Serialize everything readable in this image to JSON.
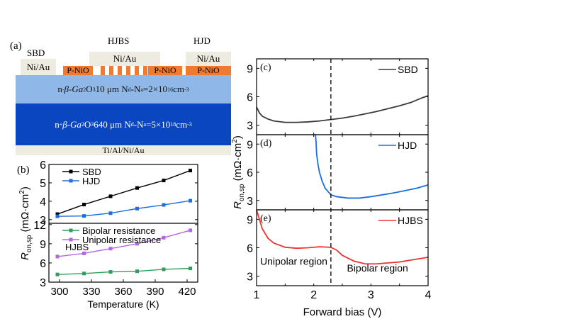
{
  "diagram": {
    "panel_label": "(a)",
    "devices": [
      {
        "name": "SBD",
        "metal": "Ni/Au"
      },
      {
        "name": "HJBS",
        "metal": "Ni/Au",
        "pnio": [
          "P-NiO",
          "P-NiO"
        ]
      },
      {
        "name": "HJD",
        "metal": "Ni/Au",
        "pnio": [
          "P-NiO"
        ]
      }
    ],
    "drift_layer": {
      "prefix": "n",
      "sup": "-",
      "text": " β-Ga",
      "sub1": "2",
      "o": "O",
      "sub2": "3",
      "rest": " 10 μm N",
      "nd": "d",
      "dash": "-N",
      "na": "a",
      "eq": "=2×10",
      "exp": "16",
      "unit": " cm",
      "unitexp": "-3"
    },
    "substrate": {
      "prefix": "n",
      "sup": "+",
      "text": " β-Ga",
      "sub1": "2",
      "o": "O",
      "sub2": "3",
      "rest": " 640 μm N",
      "nd": "d",
      "dash": "-N",
      "na": "a",
      "eq": "=5×10",
      "exp": "18",
      "unit": " cm",
      "unitexp": "-3"
    },
    "back_contact": "Ti/Al/Ni/Au",
    "colors": {
      "metal": "#eeebe1",
      "pnio": "#ee7b30",
      "drift": "#8fb8e8",
      "substrate": "#0a46bf"
    }
  },
  "chart_data": [
    {
      "id": "b",
      "type": "line",
      "panel_label": "(b)",
      "xlabel": "Temperature (K)",
      "ylabel": "R_on,sp (mΩ·cm²)",
      "x": [
        298,
        323,
        348,
        373,
        398,
        423
      ],
      "xticks": [
        300,
        330,
        360,
        390,
        420
      ],
      "xlim": [
        290,
        430
      ],
      "subplots": [
        {
          "ylim": [
            2.8,
            6.0
          ],
          "yticks": [
            3,
            4,
            5,
            6
          ],
          "legend": "top-left",
          "series": [
            {
              "name": "SBD",
              "color": "#000000",
              "values": [
                3.3,
                3.82,
                4.27,
                4.72,
                5.13,
                5.67
              ]
            },
            {
              "name": "HJD",
              "color": "#1f6fe0",
              "values": [
                3.18,
                3.2,
                3.35,
                3.6,
                3.8,
                4.03
              ]
            }
          ]
        },
        {
          "ylim": [
            3,
            12.2
          ],
          "yticks": [
            3,
            6,
            9,
            12
          ],
          "legend": "top-left",
          "annotation": "HJBS",
          "series": [
            {
              "name": "Bipolar resistance",
              "color": "#2ca05a",
              "values": [
                4.2,
                4.35,
                4.6,
                4.7,
                5.0,
                5.15
              ]
            },
            {
              "name": "Unipolar resistance",
              "color": "#b366e6",
              "values": [
                7.0,
                7.5,
                8.25,
                9.0,
                9.95,
                11.1
              ]
            }
          ]
        }
      ]
    },
    {
      "id": "cde",
      "type": "line",
      "xlabel": "Forward bias (V)",
      "ylabel": "R_on,sp (mΩ·cm²)",
      "xlim": [
        1,
        4
      ],
      "xticks": [
        1,
        2,
        3,
        4
      ],
      "dashed_line_x": 2.3,
      "subplots": [
        {
          "panel_label": "(c)",
          "ylim": [
            2,
            10
          ],
          "yticks": [
            3,
            6,
            9
          ],
          "series": [
            {
              "name": "SBD",
              "color": "#3a3a3a",
              "points": [
                [
                  1.0,
                  4.9
                ],
                [
                  1.05,
                  4.3
                ],
                [
                  1.1,
                  3.95
                ],
                [
                  1.2,
                  3.65
                ],
                [
                  1.3,
                  3.45
                ],
                [
                  1.5,
                  3.3
                ],
                [
                  1.7,
                  3.3
                ],
                [
                  1.9,
                  3.35
                ],
                [
                  2.1,
                  3.45
                ],
                [
                  2.3,
                  3.6
                ],
                [
                  2.5,
                  3.75
                ],
                [
                  2.7,
                  3.95
                ],
                [
                  2.9,
                  4.2
                ],
                [
                  3.1,
                  4.45
                ],
                [
                  3.3,
                  4.75
                ],
                [
                  3.5,
                  5.05
                ],
                [
                  3.7,
                  5.4
                ],
                [
                  3.9,
                  5.9
                ],
                [
                  4.0,
                  6.1
                ]
              ]
            }
          ]
        },
        {
          "panel_label": "(d)",
          "ylim": [
            2,
            10
          ],
          "yticks": [
            3,
            6,
            9
          ],
          "series": [
            {
              "name": "HJD",
              "color": "#1a6fe0",
              "points": [
                [
                  2.03,
                  10
                ],
                [
                  2.04,
                  9.3
                ],
                [
                  2.05,
                  8.0
                ],
                [
                  2.07,
                  7.0
                ],
                [
                  2.1,
                  6.0
                ],
                [
                  2.15,
                  5.0
                ],
                [
                  2.2,
                  4.3
                ],
                [
                  2.3,
                  3.6
                ],
                [
                  2.4,
                  3.4
                ],
                [
                  2.6,
                  3.25
                ],
                [
                  2.8,
                  3.25
                ],
                [
                  3.0,
                  3.4
                ],
                [
                  3.2,
                  3.6
                ],
                [
                  3.4,
                  3.8
                ],
                [
                  3.6,
                  4.05
                ],
                [
                  3.8,
                  4.3
                ],
                [
                  4.0,
                  4.65
                ]
              ]
            }
          ]
        },
        {
          "panel_label": "(e)",
          "ylim": [
            2,
            10
          ],
          "yticks": [
            3,
            6,
            9
          ],
          "series": [
            {
              "name": "HJBS",
              "color": "#ee3333",
              "points": [
                [
                  1.0,
                  10
                ],
                [
                  1.05,
                  9.0
                ],
                [
                  1.1,
                  8.0
                ],
                [
                  1.2,
                  7.0
                ],
                [
                  1.3,
                  6.5
                ],
                [
                  1.5,
                  6.05
                ],
                [
                  1.7,
                  5.95
                ],
                [
                  1.9,
                  6.0
                ],
                [
                  2.1,
                  6.1
                ],
                [
                  2.3,
                  6.05
                ],
                [
                  2.4,
                  5.75
                ],
                [
                  2.5,
                  5.2
                ],
                [
                  2.7,
                  4.6
                ],
                [
                  2.9,
                  4.3
                ],
                [
                  3.1,
                  4.3
                ],
                [
                  3.3,
                  4.4
                ],
                [
                  3.5,
                  4.5
                ],
                [
                  3.7,
                  4.7
                ],
                [
                  3.9,
                  4.9
                ],
                [
                  4.0,
                  5.0
                ]
              ]
            }
          ],
          "annotations": [
            "Unipolar region",
            "Bipolar region"
          ]
        }
      ]
    }
  ]
}
